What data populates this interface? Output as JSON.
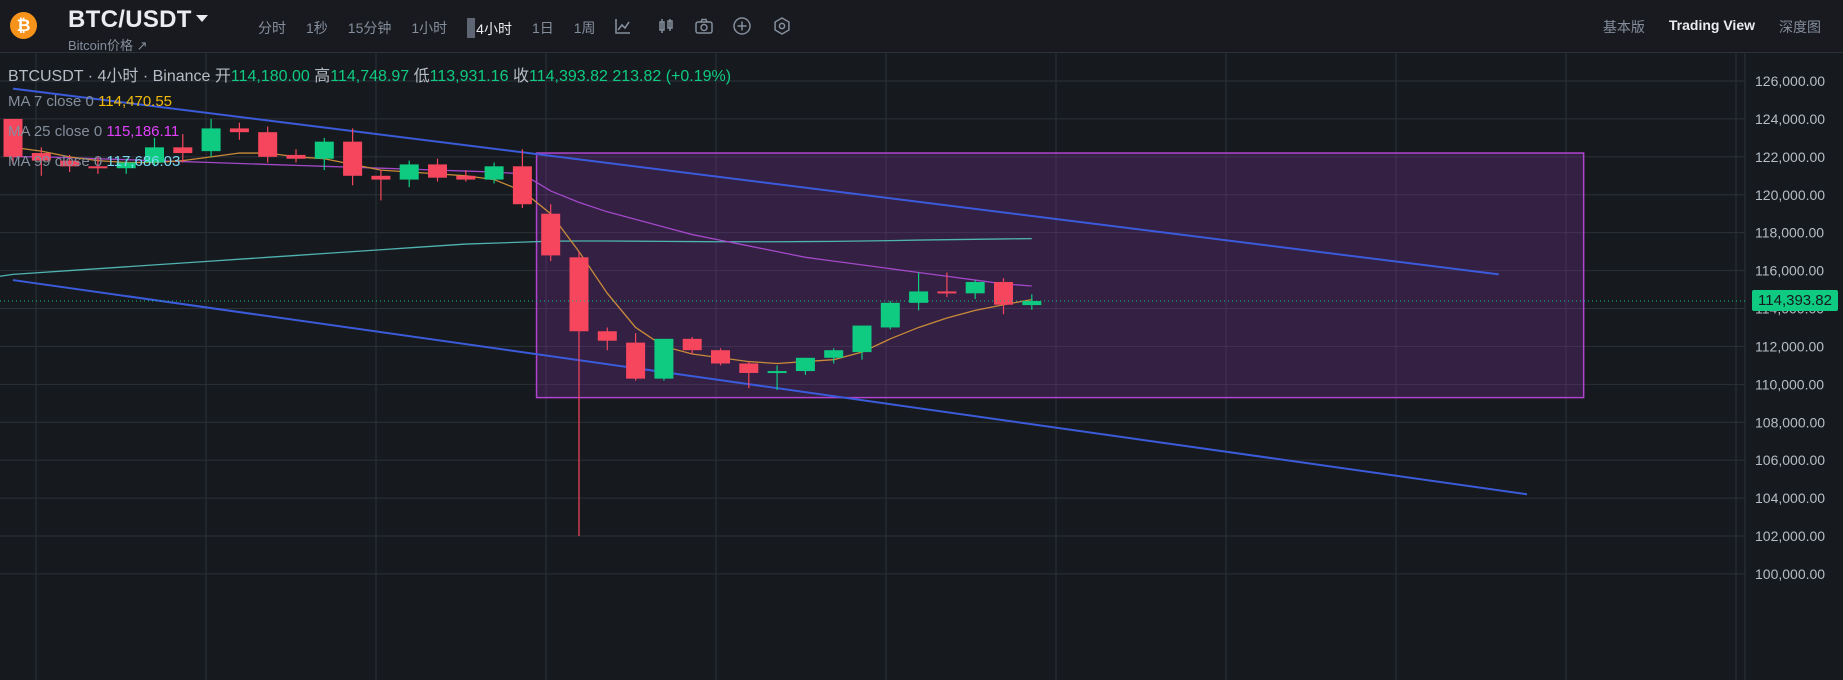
{
  "header": {
    "coin_symbol": "₿",
    "pair": "BTC/USDT",
    "subtitle": "Bitcoin价格 ↗",
    "intervals": [
      "分时",
      "1秒",
      "15分钟",
      "1小时",
      "4小时",
      "1日",
      "1周"
    ],
    "active_interval_index": 4,
    "tool_icons": [
      "indicator-icon",
      "chart-type-icon",
      "camera-icon",
      "add-icon",
      "settings-icon"
    ],
    "view_tabs": [
      "基本版",
      "Trading View",
      "深度图"
    ],
    "active_view_index": 1
  },
  "legend": {
    "symbol": "BTCUSDT · 4小时 · Binance",
    "open_label": "开",
    "open": "114,180.00",
    "high_label": "高",
    "high": "114,748.97",
    "low_label": "低",
    "low": "113,931.16",
    "close_label": "收",
    "close": "114,393.82",
    "change": "213.82 (+0.19%)"
  },
  "indicators": [
    {
      "name": "MA 7 close 0",
      "value": "114,470.55",
      "color": "#f0b90b"
    },
    {
      "name": "MA 25 close 0",
      "value": "115,186.11",
      "color": "#e040fb"
    },
    {
      "name": "MA 99 close 0",
      "value": "117,686.03",
      "color": "#7ad9f0"
    }
  ],
  "current_price_label": "114,393.82",
  "colors": {
    "up": "#0ecb81",
    "down": "#f6465d",
    "grid": "#2b3139",
    "trendline": "#3b5bdb",
    "box": "#b044d0",
    "ma7": "#c98a3a",
    "ma25": "#a348c8",
    "ma99": "#4fb3b0"
  },
  "chart_data": {
    "type": "candlestick",
    "y_ticks": [
      126000,
      124000,
      122000,
      120000,
      118000,
      116000,
      114000,
      112000,
      110000,
      108000,
      106000,
      104000,
      102000,
      100000
    ],
    "y_tick_labels": [
      "126,000.00",
      "124,000.00",
      "122,000.00",
      "120,000.00",
      "118,000.00",
      "116,000.00",
      "114,000.00",
      "112,000.00",
      "110,000.00",
      "108,000.00",
      "106,000.00",
      "104,000.00",
      "102,000.00",
      "100,000.00"
    ],
    "ylim": [
      100000,
      127000
    ],
    "candles": [
      [
        124000,
        123900,
        121600,
        122000
      ],
      [
        122200,
        122500,
        121000,
        121800
      ],
      [
        121800,
        122100,
        121200,
        121500
      ],
      [
        121500,
        122000,
        121100,
        121400
      ],
      [
        121400,
        121900,
        121100,
        121700
      ],
      [
        121700,
        123000,
        121500,
        122500
      ],
      [
        122500,
        123200,
        121700,
        122200
      ],
      [
        122300,
        124000,
        122000,
        123500
      ],
      [
        123500,
        123800,
        122900,
        123300
      ],
      [
        123300,
        123600,
        121700,
        122000
      ],
      [
        122100,
        122400,
        121700,
        121900
      ],
      [
        121900,
        123000,
        121300,
        122800
      ],
      [
        122800,
        123500,
        120500,
        121000
      ],
      [
        121000,
        121300,
        119700,
        120800
      ],
      [
        120800,
        121800,
        120400,
        121600
      ],
      [
        121600,
        121900,
        120700,
        120900
      ],
      [
        121000,
        121300,
        120700,
        120800
      ],
      [
        120800,
        121700,
        120600,
        121500
      ],
      [
        121500,
        122400,
        119300,
        119500
      ],
      [
        119000,
        119500,
        116500,
        116800
      ],
      [
        116700,
        117000,
        102000,
        112800
      ],
      [
        112800,
        113000,
        111800,
        112300
      ],
      [
        112200,
        112700,
        110200,
        110300
      ],
      [
        110300,
        112400,
        110200,
        112400
      ],
      [
        112400,
        112500,
        111600,
        111800
      ],
      [
        111800,
        111900,
        111000,
        111100
      ],
      [
        111100,
        111200,
        109800,
        110600
      ],
      [
        110600,
        111000,
        109700,
        110700
      ],
      [
        110700,
        111400,
        110500,
        111400
      ],
      [
        111400,
        111900,
        111100,
        111800
      ],
      [
        111700,
        113100,
        111300,
        113100
      ],
      [
        113000,
        114400,
        112900,
        114300
      ],
      [
        114300,
        115900,
        113900,
        114900
      ],
      [
        114900,
        115900,
        114600,
        114800
      ],
      [
        114800,
        115500,
        114500,
        115400
      ],
      [
        115400,
        115600,
        113700,
        114200
      ],
      [
        114180,
        114749,
        113931,
        114394
      ]
    ],
    "ma7": [
      122500,
      122300,
      122000,
      121800,
      121700,
      121700,
      121800,
      122000,
      122200,
      122200,
      122000,
      121900,
      121600,
      121300,
      121200,
      121100,
      121000,
      120800,
      120200,
      119000,
      117000,
      114800,
      113000,
      112000,
      111600,
      111400,
      111200,
      111100,
      111200,
      111300,
      111700,
      112400,
      113000,
      113500,
      113900,
      114200,
      114470
    ],
    "ma25": [
      122000,
      122000,
      121950,
      121900,
      121850,
      121800,
      121750,
      121700,
      121650,
      121600,
      121550,
      121500,
      121450,
      121400,
      121350,
      121300,
      121250,
      121200,
      121100,
      120200,
      119600,
      119100,
      118700,
      118300,
      117900,
      117600,
      117300,
      117000,
      116700,
      116500,
      116300,
      116100,
      115900,
      115700,
      115500,
      115300,
      115186
    ],
    "ma99": [
      115800,
      115900,
      116000,
      116100,
      116200,
      116300,
      116400,
      116500,
      116600,
      116700,
      116800,
      116900,
      117000,
      117100,
      117200,
      117300,
      117400,
      117450,
      117500,
      117550,
      117560,
      117560,
      117550,
      117540,
      117530,
      117520,
      117520,
      117520,
      117530,
      117540,
      117560,
      117580,
      117610,
      117630,
      117650,
      117670,
      117686
    ],
    "upper_trendline": [
      [
        0,
        125600
      ],
      [
        52.5,
        115800
      ]
    ],
    "lower_trendline": [
      [
        0,
        115500
      ],
      [
        53.5,
        104200
      ]
    ],
    "range_box": {
      "from": 18.5,
      "to": 55.5,
      "high": 122200,
      "low": 109300
    },
    "current_price": 114393.82
  }
}
